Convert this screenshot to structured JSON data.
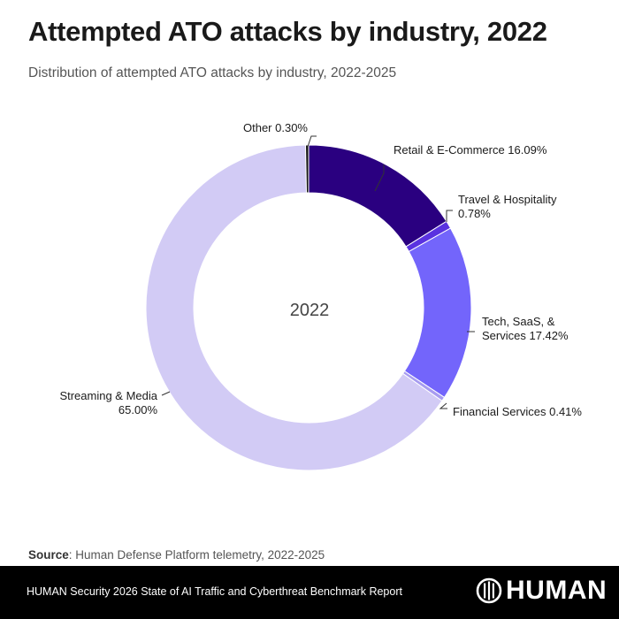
{
  "header": {
    "title": "Attempted ATO attacks by industry, 2022",
    "subtitle": "Distribution of attempted ATO attacks by industry, 2022-2025"
  },
  "chart_data": {
    "type": "pie",
    "variant": "donut",
    "title": "Attempted ATO attacks by industry, 2022",
    "subtitle": "Distribution of attempted ATO attacks by industry, 2022-2025",
    "center_label": "2022",
    "unit": "%",
    "slices": [
      {
        "name": "Retail & E-Commerce",
        "value": 16.09,
        "color": "#2a0080",
        "label_lines": [
          "Retail & E-Commerce 16.09%"
        ]
      },
      {
        "name": "Travel & Hospitality",
        "value": 0.78,
        "color": "#5a32e0",
        "label_lines": [
          "Travel & Hospitality",
          "0.78%"
        ]
      },
      {
        "name": "Tech, SaaS, & Services",
        "value": 17.42,
        "color": "#7365fb",
        "label_lines": [
          "Tech, SaaS, &",
          "Services 17.42%"
        ]
      },
      {
        "name": "Financial Services",
        "value": 0.41,
        "color": "#a79cf0",
        "label_lines": [
          "Financial Services 0.41%"
        ]
      },
      {
        "name": "Streaming & Media",
        "value": 65.0,
        "color": "#d2cbf5",
        "label_lines": [
          "Streaming & Media",
          "65.00%"
        ]
      },
      {
        "name": "Other",
        "value": 0.3,
        "color": "#111111",
        "label_lines": [
          "Other 0.30%"
        ]
      }
    ],
    "start_angle_deg": 0,
    "direction": "clockwise",
    "legend": "none"
  },
  "source": {
    "label": "Source",
    "text": ": Human Defense Platform telemetry, 2022-2025"
  },
  "footer": {
    "report": "HUMAN Security 2026 State of AI Traffic and Cyberthreat Benchmark Report",
    "logo_text": "HUMAN",
    "logo_icon": "human-logo-mark"
  }
}
